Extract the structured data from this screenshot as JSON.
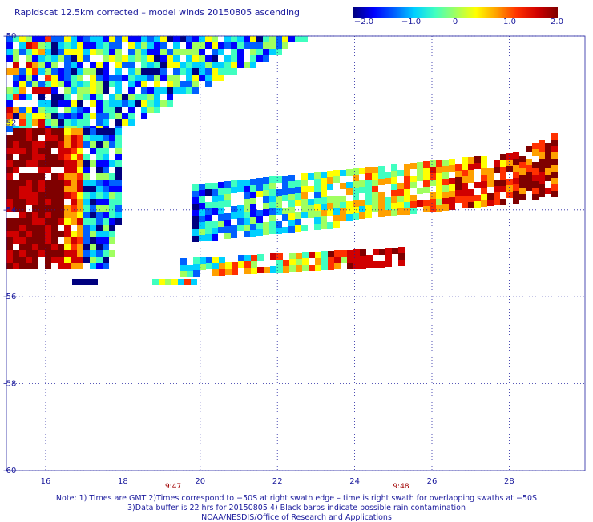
{
  "title": "Rapidscat 12.5km corrected – model winds 20150805 ascending",
  "colorbar": {
    "ticks": [
      "−2.0",
      "−1.0",
      "0",
      "1.0",
      "2.0"
    ],
    "colors": [
      "#00007f",
      "#0000ff",
      "#0060ff",
      "#00d0ff",
      "#40ffc0",
      "#a0ff60",
      "#ffff00",
      "#ffa000",
      "#ff3000",
      "#d00000",
      "#7f0000"
    ]
  },
  "map": {
    "lat_labels": [
      "-50",
      "-52",
      "-54",
      "-56",
      "-58",
      "-60"
    ],
    "lon_labels": [
      "16",
      "18",
      "20",
      "22",
      "24",
      "26",
      "28"
    ],
    "time_labels": [
      "9:47",
      "9:48"
    ],
    "grid_color": "#2020a0",
    "label_color": "#1a1a9c",
    "time_color": "#a00000"
  },
  "chart_data": {
    "type": "heatmap",
    "title": "Rapidscat 12.5km corrected – model winds 20150805 ascending",
    "xlim": [
      15,
      30
    ],
    "ylim": [
      -60,
      -50
    ],
    "value_range": [
      -2.0,
      2.0
    ],
    "swaths": [
      {
        "name": "upper-left swath",
        "value_range": [
          -2.0,
          2.0
        ]
      },
      {
        "name": "left coastal swath",
        "value_range": [
          1.0,
          2.0
        ]
      },
      {
        "name": "eastern swath",
        "value_range": [
          -2.0,
          2.0
        ]
      }
    ],
    "time_markers": [
      {
        "lon": 19.3,
        "label": "9:47"
      },
      {
        "lon": 25.2,
        "label": "9:48"
      }
    ]
  },
  "footer": {
    "line1": "Note: 1) Times are GMT 2)Times correspond to −50S at right swath edge – time is right swath for overlapping swaths at −50S",
    "line2": "3)Data buffer is 22 hrs for 20150805 4) Black barbs indicate possible rain contamination",
    "line3": "NOAA/NESDIS/Office of Research and Applications"
  }
}
